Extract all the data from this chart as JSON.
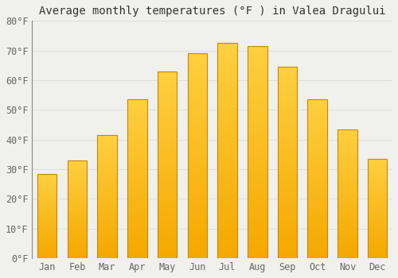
{
  "title": "Average monthly temperatures (°F ) in Valea Dragului",
  "months": [
    "Jan",
    "Feb",
    "Mar",
    "Apr",
    "May",
    "Jun",
    "Jul",
    "Aug",
    "Sep",
    "Oct",
    "Nov",
    "Dec"
  ],
  "values": [
    28.5,
    33.0,
    41.5,
    53.5,
    63.0,
    69.0,
    72.5,
    71.5,
    64.5,
    53.5,
    43.5,
    33.5
  ],
  "bar_color_bottom": "#F5A800",
  "bar_color_top": "#FFD040",
  "bar_edge_color": "#C88800",
  "background_color": "#F0F0EC",
  "grid_color": "#DDDDDD",
  "ylim": [
    0,
    80
  ],
  "yticks": [
    0,
    10,
    20,
    30,
    40,
    50,
    60,
    70,
    80
  ],
  "ytick_labels": [
    "0°F",
    "10°F",
    "20°F",
    "30°F",
    "40°F",
    "50°F",
    "60°F",
    "70°F",
    "80°F"
  ],
  "title_fontsize": 10,
  "tick_fontsize": 8.5,
  "bar_width": 0.65,
  "n_gradient_segments": 80
}
